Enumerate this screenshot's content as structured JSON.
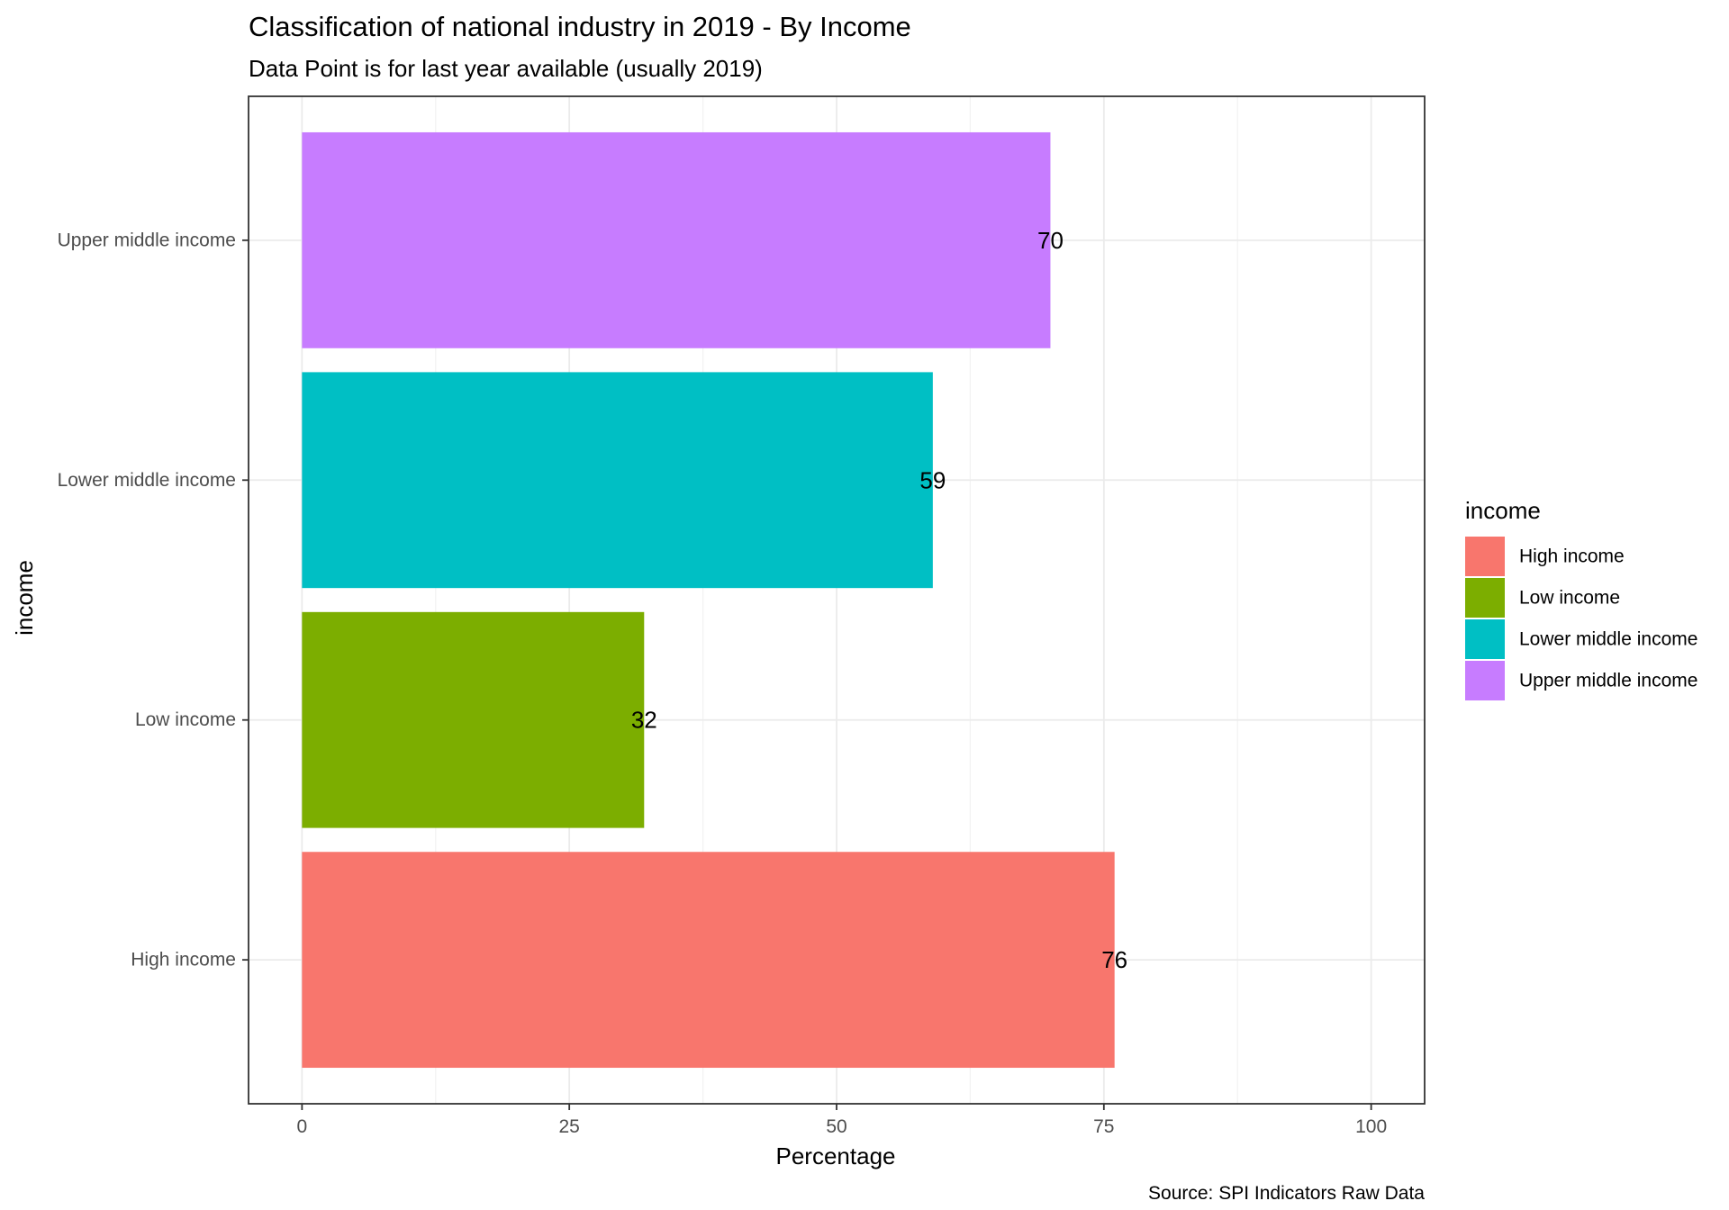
{
  "chart_data": {
    "type": "bar",
    "orientation": "horizontal",
    "title": "Classification of national industry in 2019 - By Income",
    "subtitle": "Data Point is for last year available (usually 2019)",
    "xlabel": "Percentage",
    "ylabel": "income",
    "caption": "Source: SPI Indicators Raw Data",
    "categories": [
      "High income",
      "Low income",
      "Lower middle income",
      "Upper middle income"
    ],
    "values": [
      76,
      32,
      59,
      70
    ],
    "data_labels": [
      "76",
      "32",
      "59",
      "70"
    ],
    "colors": [
      "#F8766D",
      "#7CAE00",
      "#00BFC4",
      "#C77CFF"
    ],
    "xlim": [
      -5,
      105
    ],
    "xticks": [
      0,
      25,
      50,
      75,
      100
    ],
    "xtick_labels": [
      "0",
      "25",
      "50",
      "75",
      "100"
    ],
    "grid": true,
    "legend": {
      "title": "income",
      "position": "right",
      "items": [
        "High income",
        "Low income",
        "Lower middle income",
        "Upper middle income"
      ]
    }
  }
}
